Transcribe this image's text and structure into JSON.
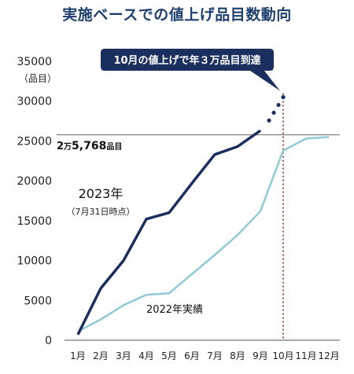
{
  "chart_data": {
    "type": "line",
    "title": "実施ベースでの値上げ品目数動向",
    "ylabel": "（品目）",
    "ylim": [
      0,
      35000
    ],
    "yticks": [
      0,
      5000,
      10000,
      15000,
      20000,
      25000,
      30000,
      35000
    ],
    "categories": [
      "1月",
      "2月",
      "3月",
      "4月",
      "5月",
      "6月",
      "7月",
      "8月",
      "9月",
      "10月",
      "11月",
      "12月"
    ],
    "series": [
      {
        "name": "2023年",
        "sublabel": "（7月31日時点）",
        "color": "#1b2f5e",
        "values": [
          700,
          6500,
          10000,
          15200,
          16000,
          19700,
          23300,
          24300,
          26300,
          null,
          null,
          null
        ],
        "projection": {
          "from": "9月",
          "to": "10月",
          "to_value": 30500
        }
      },
      {
        "name": "2022年実績",
        "color": "#8fcad6",
        "values": [
          1100,
          2600,
          4400,
          5700,
          5900,
          8300,
          10700,
          13200,
          16200,
          23800,
          25300,
          25500
        ]
      }
    ],
    "reference_line": {
      "value": 25768,
      "label": "2万5,768品目"
    },
    "vertical_marker": {
      "at": "10月",
      "color": "#8b1a1a"
    },
    "callout": "10月の値上げで年３万品目到達",
    "legend": "inline",
    "grid": false
  }
}
